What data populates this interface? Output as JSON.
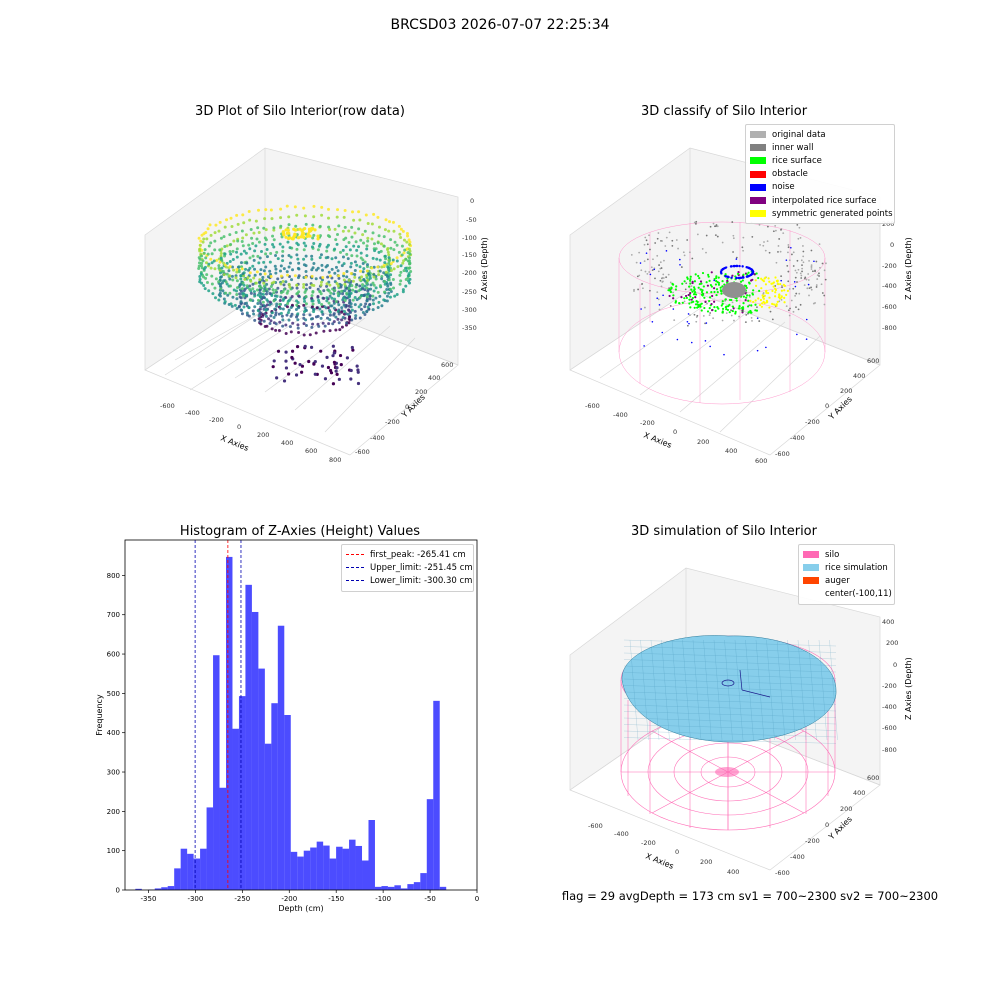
{
  "suptitle": "BRCSD03 2026-07-07 22:25:34",
  "footer": "flag = 29  avgDepth = 173 cm  sv1 = 700~2300  sv2 = 700~2300",
  "panels": {
    "raw": {
      "title": "3D Plot of Silo Interior(row data)",
      "xlabel": "X Axies",
      "ylabel": "Y Axies",
      "zlabel": "Z Axies (Depth)",
      "xticks": [
        "-600",
        "-400",
        "-200",
        "0",
        "200",
        "400",
        "600",
        "800"
      ],
      "yticks": [
        "-600",
        "-400",
        "-200",
        "0",
        "200",
        "400",
        "600"
      ],
      "zticks": [
        "0",
        "-50",
        "-100",
        "-150",
        "-200",
        "-250",
        "-300",
        "-350"
      ]
    },
    "classify": {
      "title": "3D classify of Silo Interior",
      "xlabel": "X Axies",
      "ylabel": "Y Axies",
      "zlabel": "Z Axies (Depth)",
      "xticks": [
        "-600",
        "-400",
        "-200",
        "0",
        "200",
        "400",
        "600"
      ],
      "yticks": [
        "-600",
        "-400",
        "-200",
        "0",
        "200",
        "400",
        "600"
      ],
      "zticks": [
        "200",
        "0",
        "-200",
        "-400",
        "-600",
        "-800"
      ],
      "legend": [
        {
          "label": "original data",
          "color": "#b0b0b0"
        },
        {
          "label": "inner wall",
          "color": "#808080"
        },
        {
          "label": "rice surface",
          "color": "#00ff00"
        },
        {
          "label": "obstacle",
          "color": "#ff0000"
        },
        {
          "label": "noise",
          "color": "#0000ff"
        },
        {
          "label": "interpolated rice surface",
          "color": "#800080"
        },
        {
          "label": "symmetric generated points",
          "color": "#ffff00"
        }
      ]
    },
    "simulation": {
      "title": "3D simulation of Silo Interior",
      "xlabel": "X Axies",
      "ylabel": "Y Axies",
      "zlabel": "Z Axies (Depth)",
      "xticks": [
        "-600",
        "-400",
        "-200",
        "0",
        "200",
        "400"
      ],
      "yticks": [
        "-600",
        "-400",
        "-200",
        "0",
        "200",
        "400",
        "600"
      ],
      "zticks": [
        "400",
        "200",
        "0",
        "-200",
        "-400",
        "-600",
        "-800"
      ],
      "legend": [
        {
          "label": "silo",
          "color": "#ff69b4"
        },
        {
          "label": "rice simulation",
          "color": "#87ceeb"
        },
        {
          "label": "auger",
          "color": "#ff4500"
        },
        {
          "label": "center(-100,11)",
          "color": "none"
        }
      ]
    }
  },
  "chart_data": {
    "type": "bar",
    "title": "Histogram of Z-Axies (Height) Values",
    "xlabel": "Depth (cm)",
    "ylabel": "Frequency",
    "xlim": [
      -375,
      0
    ],
    "ylim": [
      0,
      890
    ],
    "xticks": [
      -350,
      -300,
      -250,
      -200,
      -150,
      -100,
      -50,
      0
    ],
    "yticks": [
      0,
      100,
      200,
      300,
      400,
      500,
      600,
      700,
      800
    ],
    "bar_color": "#0000ff",
    "bin_edges_start": -364,
    "bin_width": 6.9,
    "values": [
      3,
      0,
      1,
      4,
      7,
      10,
      55,
      105,
      92,
      80,
      105,
      210,
      597,
      260,
      847,
      410,
      493,
      776,
      707,
      563,
      372,
      475,
      672,
      445,
      97,
      85,
      100,
      108,
      123,
      113,
      80,
      110,
      105,
      128,
      112,
      75,
      178,
      8,
      10,
      8,
      12,
      4,
      15,
      20,
      43,
      231,
      481,
      8
    ],
    "vlines": [
      {
        "label": "first_peak: -265.41 cm",
        "x": -265.41,
        "color": "#ff0000"
      },
      {
        "label": "Upper_limit: -251.45 cm",
        "x": -251.45,
        "color": "#0000b0"
      },
      {
        "label": "Lower_limit: -300.30 cm",
        "x": -300.3,
        "color": "#0000b0"
      }
    ]
  }
}
